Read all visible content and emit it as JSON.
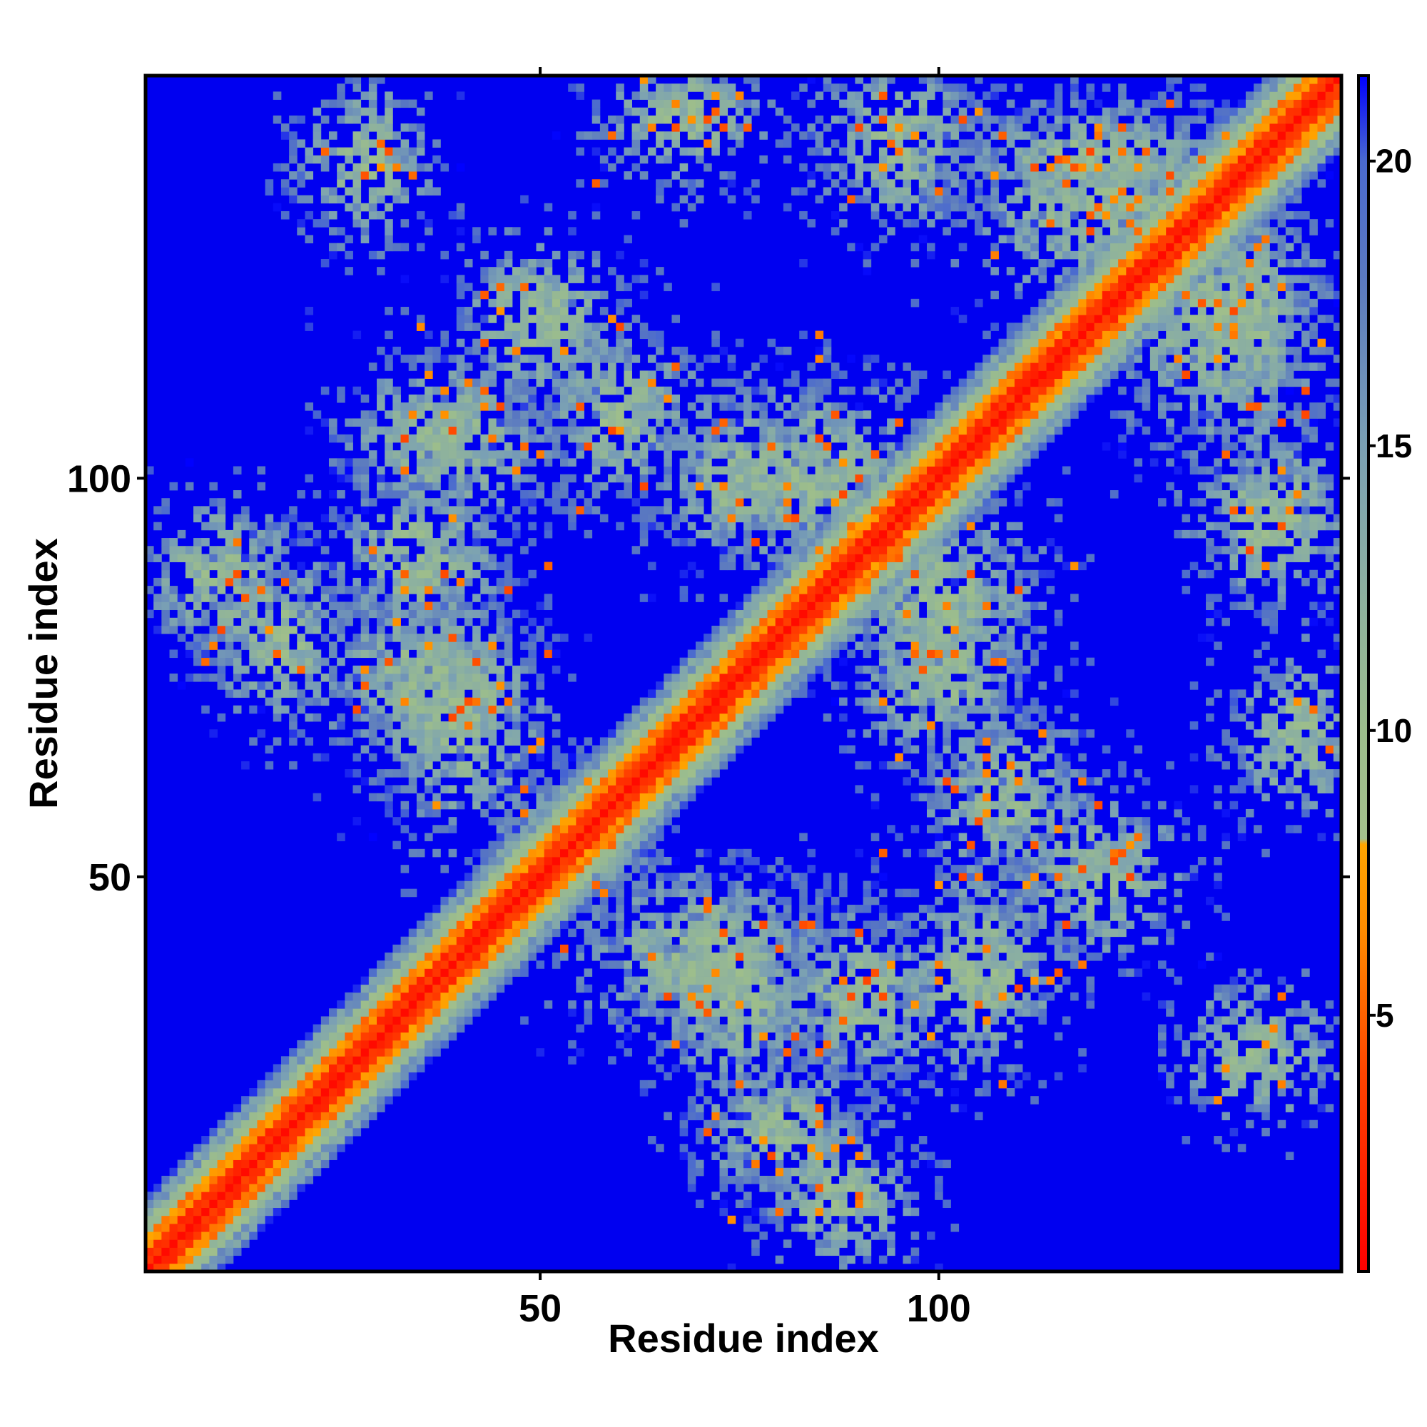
{
  "chart_data": {
    "type": "heatmap",
    "title": "",
    "xlabel": "Residue index",
    "ylabel": "Residue index",
    "n_residues": 150,
    "xlim": [
      1,
      150
    ],
    "ylim": [
      1,
      150
    ],
    "x_ticks": [
      50,
      100
    ],
    "y_ticks": [
      50,
      100
    ],
    "colorbar": {
      "ticks": [
        5,
        10,
        15,
        20
      ],
      "range": [
        0.5,
        21.5
      ],
      "colors": [
        {
          "value": 0.5,
          "color": "#ff0000"
        },
        {
          "value": 4,
          "color": "#ff4500"
        },
        {
          "value": 6.5,
          "color": "#ff8c00"
        },
        {
          "value": 8,
          "color": "#ffa500"
        },
        {
          "value": 8.1,
          "color": "#a4c08c"
        },
        {
          "value": 10,
          "color": "#9cbd8c"
        },
        {
          "value": 12.5,
          "color": "#8cb0a0"
        },
        {
          "value": 15,
          "color": "#7aa0b4"
        },
        {
          "value": 18,
          "color": "#5a78c0"
        },
        {
          "value": 20,
          "color": "#4a6ad0"
        },
        {
          "value": 21.5,
          "color": "#0000ff"
        }
      ]
    },
    "background_color": "#0000f0",
    "diagonal": {
      "core_color": "#ff0000",
      "near_color": "#ff8c00",
      "band_color": "#a8c08c",
      "edge_color": "#7a9cc0"
    },
    "contact_regions": [
      {
        "center": [
          88,
          10
        ],
        "spread": [
          9,
          9
        ]
      },
      {
        "center": [
          75,
          35
        ],
        "spread": [
          10,
          12
        ]
      },
      {
        "center": [
          55,
          55
        ],
        "spread": [
          8,
          8
        ]
      },
      {
        "center": [
          40,
          70
        ],
        "spread": [
          10,
          14
        ]
      },
      {
        "center": [
          18,
          80
        ],
        "spread": [
          9,
          10
        ]
      },
      {
        "center": [
          100,
          75
        ],
        "spread": [
          10,
          10
        ]
      },
      {
        "center": [
          85,
          100
        ],
        "spread": [
          12,
          12
        ]
      },
      {
        "center": [
          60,
          108
        ],
        "spread": [
          10,
          10
        ]
      },
      {
        "center": [
          38,
          105
        ],
        "spread": [
          12,
          10
        ]
      },
      {
        "center": [
          28,
          140
        ],
        "spread": [
          8,
          10
        ]
      },
      {
        "center": [
          120,
          140
        ],
        "spread": [
          16,
          6
        ]
      },
      {
        "center": [
          135,
          120
        ],
        "spread": [
          12,
          16
        ]
      },
      {
        "center": [
          142,
          95
        ],
        "spread": [
          10,
          10
        ]
      },
      {
        "center": [
          145,
          68
        ],
        "spread": [
          8,
          10
        ]
      },
      {
        "center": [
          35,
          90
        ],
        "spread": [
          10,
          10
        ]
      },
      {
        "center": [
          120,
          50
        ],
        "spread": [
          10,
          10
        ]
      }
    ]
  }
}
